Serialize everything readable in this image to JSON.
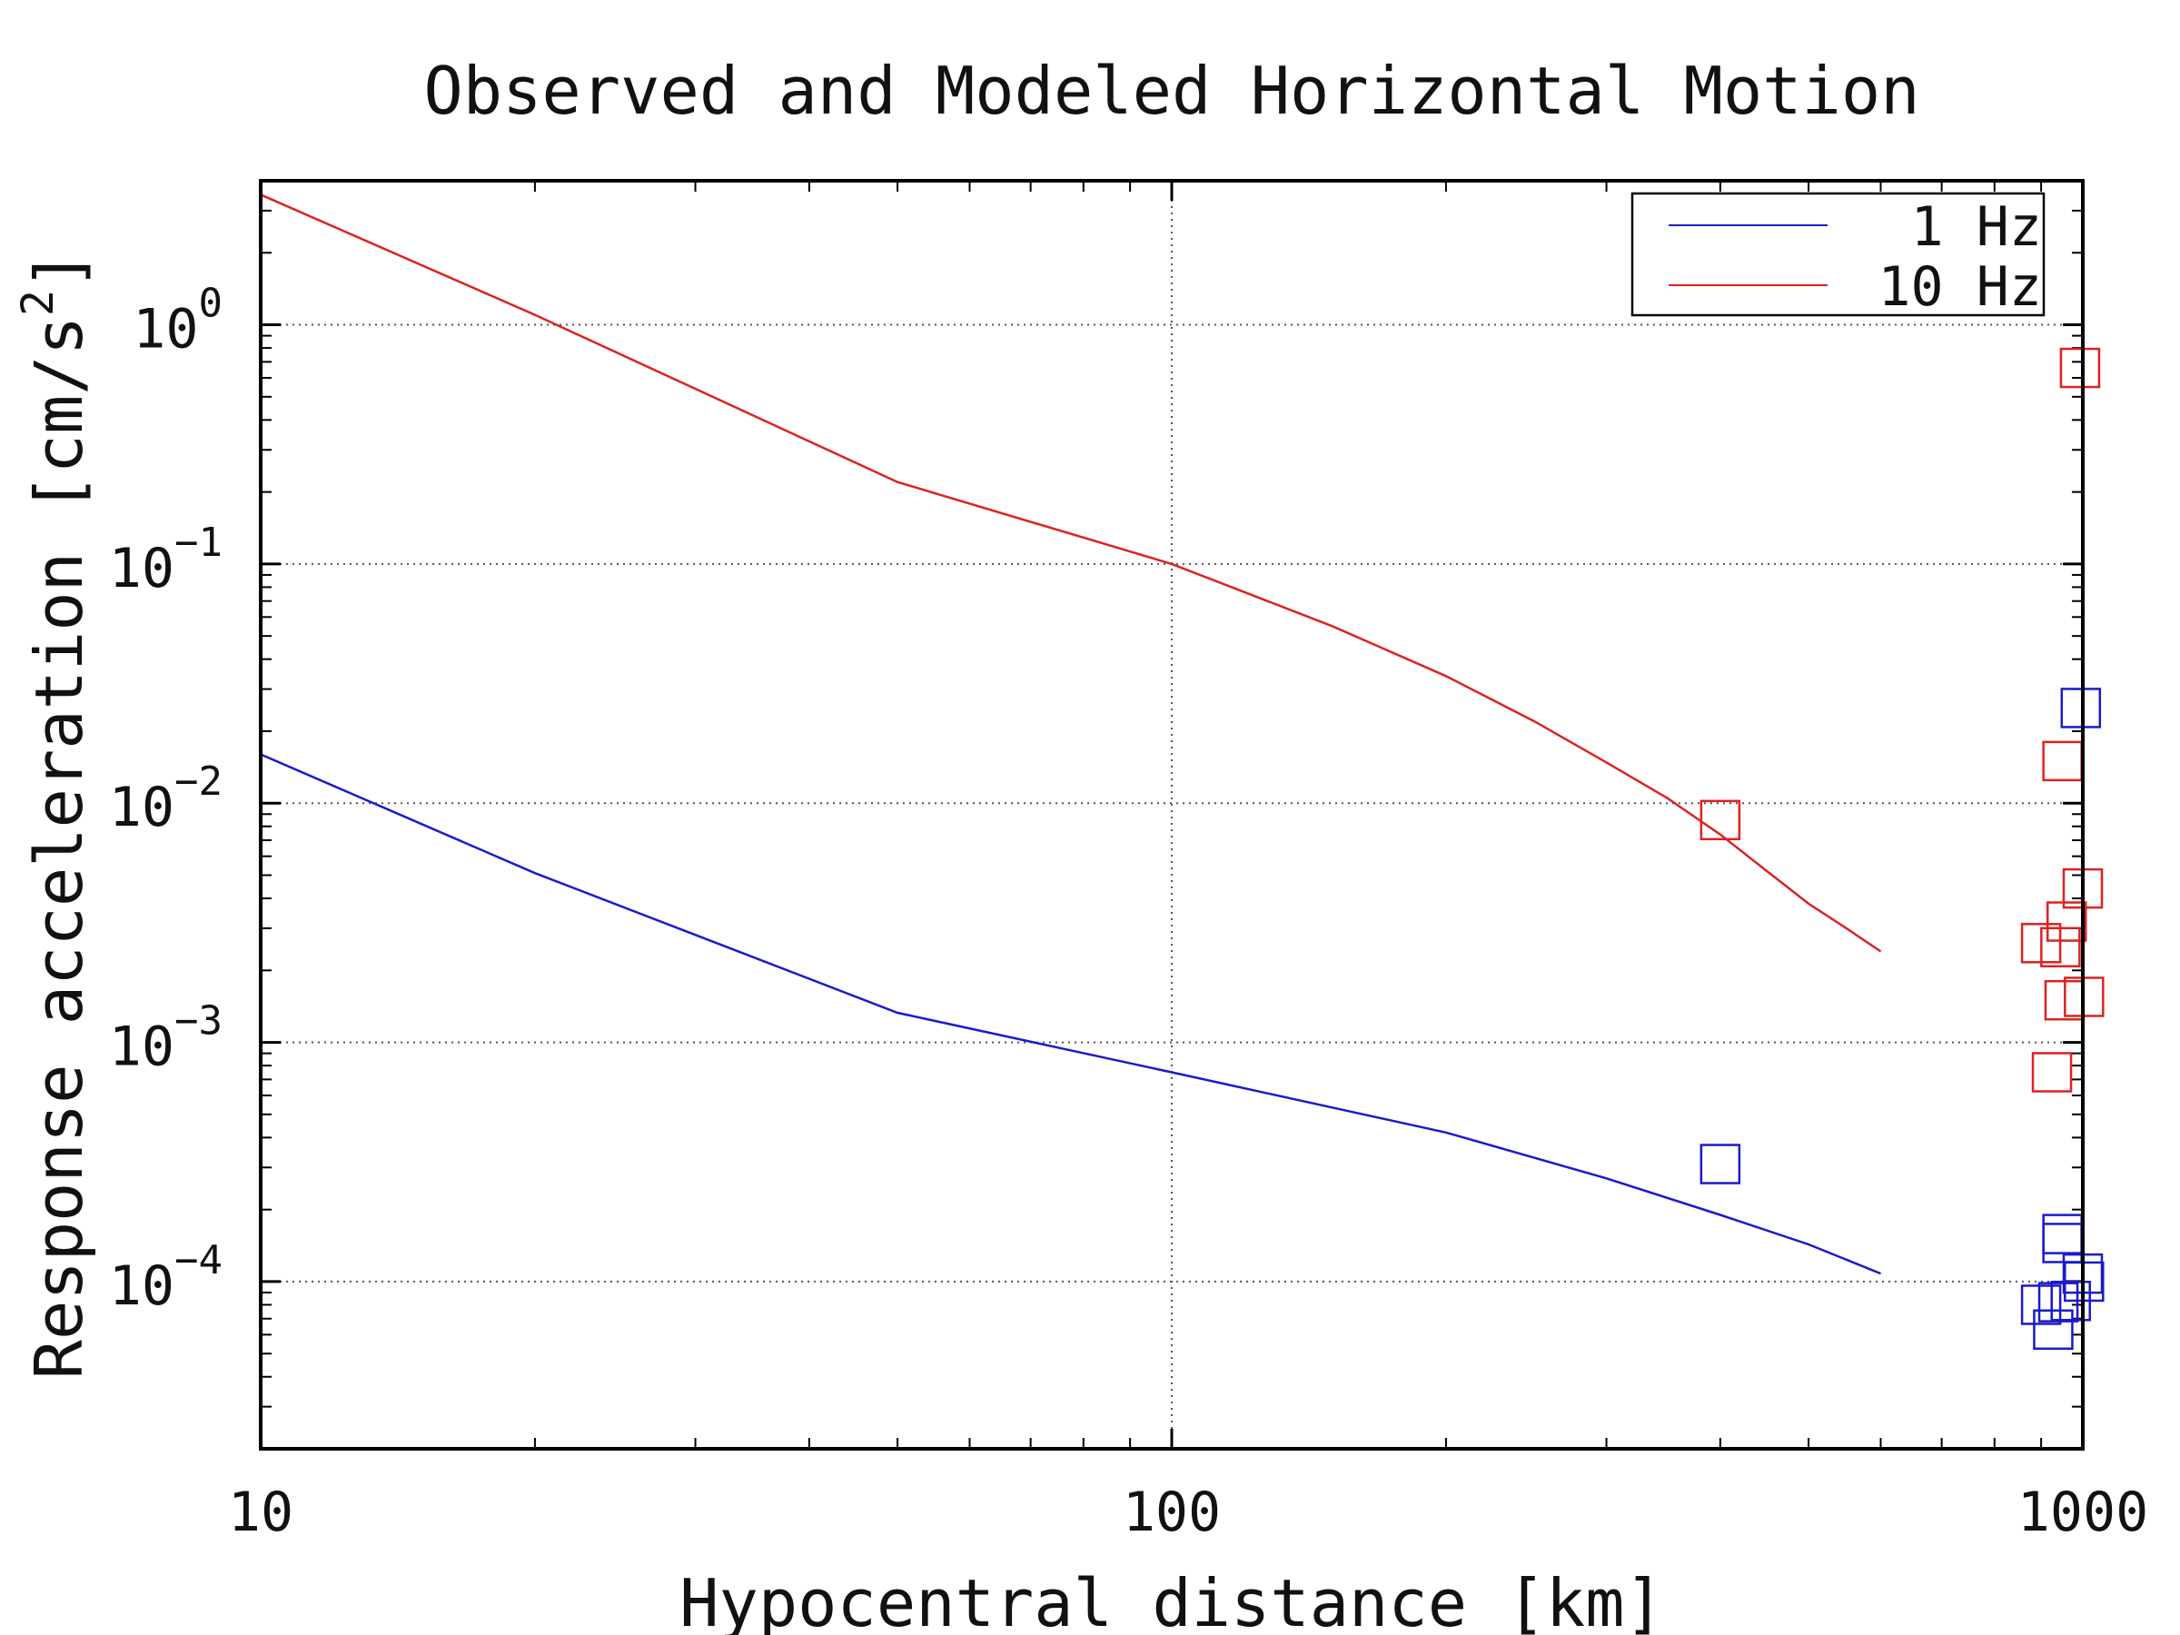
{
  "chart_data": {
    "type": "line",
    "title": "Observed and Modeled Horizontal Motion",
    "xlabel": "Hypocentral distance [km]",
    "ylabel_main": "Response acceleration [cm/s",
    "ylabel_sup": "2",
    "ylabel_close": "]",
    "x_scale": "log",
    "y_scale": "log",
    "xlim": [
      10,
      1000
    ],
    "ylim": [
      2e-05,
      4
    ],
    "grid": true,
    "legend_position": "top-right",
    "x_ticks": [
      {
        "value": 10,
        "label": "10"
      },
      {
        "value": 100,
        "label": "100"
      },
      {
        "value": 1000,
        "label": "1000"
      }
    ],
    "y_ticks": [
      {
        "value": 1,
        "base": "10",
        "exp": "0"
      },
      {
        "value": 0.1,
        "base": "10",
        "exp": "−1"
      },
      {
        "value": 0.01,
        "base": "10",
        "exp": "−2"
      },
      {
        "value": 0.001,
        "base": "10",
        "exp": "−3"
      },
      {
        "value": 0.0001,
        "base": "10",
        "exp": "−4"
      }
    ],
    "series": [
      {
        "name": "1 Hz",
        "color": "#1a1acc",
        "x": [
          10,
          20,
          50,
          100,
          200,
          300,
          400,
          500,
          600
        ],
        "y": [
          0.016,
          0.0051,
          0.00133,
          0.00075,
          0.00042,
          0.00027,
          0.00019,
          0.000143,
          0.000108
        ]
      },
      {
        "name": "10 Hz",
        "color": "#dd2222",
        "x": [
          10,
          20,
          50,
          100,
          150,
          200,
          250,
          300,
          350,
          400,
          450,
          500,
          550,
          600
        ],
        "y": [
          3.5,
          1.1,
          0.22,
          0.1,
          0.055,
          0.034,
          0.022,
          0.0148,
          0.0105,
          0.0074,
          0.0052,
          0.0038,
          0.003,
          0.0024
        ]
      }
    ],
    "observed": [
      {
        "series": "10 Hz",
        "x": 400,
        "y": 0.0085
      },
      {
        "series": "10 Hz",
        "x": 993,
        "y": 0.66
      },
      {
        "series": "10 Hz",
        "x": 950,
        "y": 0.015
      },
      {
        "series": "10 Hz",
        "x": 1000,
        "y": 0.0044
      },
      {
        "series": "10 Hz",
        "x": 960,
        "y": 0.0032
      },
      {
        "series": "10 Hz",
        "x": 900,
        "y": 0.0026
      },
      {
        "series": "10 Hz",
        "x": 945,
        "y": 0.0025
      },
      {
        "series": "10 Hz",
        "x": 955,
        "y": 0.0015
      },
      {
        "series": "10 Hz",
        "x": 1003,
        "y": 0.00155
      },
      {
        "series": "10 Hz",
        "x": 925,
        "y": 0.00075
      },
      {
        "series": "1 Hz",
        "x": 400,
        "y": 0.00031
      },
      {
        "series": "1 Hz",
        "x": 995,
        "y": 0.025
      },
      {
        "series": "1 Hz",
        "x": 950,
        "y": 0.000158
      },
      {
        "series": "1 Hz",
        "x": 950,
        "y": 0.000145
      },
      {
        "series": "1 Hz",
        "x": 1000,
        "y": 0.000108
      },
      {
        "series": "1 Hz",
        "x": 1003,
        "y": 0.0001
      },
      {
        "series": "1 Hz",
        "x": 900,
        "y": 8e-05
      },
      {
        "series": "1 Hz",
        "x": 940,
        "y": 8.2e-05
      },
      {
        "series": "1 Hz",
        "x": 970,
        "y": 8.3e-05
      },
      {
        "series": "1 Hz",
        "x": 928,
        "y": 6.3e-05
      }
    ]
  }
}
